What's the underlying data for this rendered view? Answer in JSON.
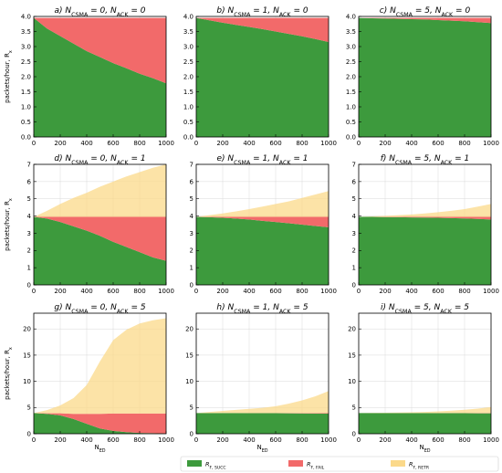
{
  "figure": {
    "ylabel": "packets/hour, R_x",
    "xlabel": "N_ED"
  },
  "legend": [
    {
      "label": "R_{F, SUCC}",
      "color": "#3d9a3d"
    },
    {
      "label": "R_{F, FAIL}",
      "color": "#f26a6a"
    },
    {
      "label": "R_{F, RETR}",
      "color": "#fbd98a"
    }
  ],
  "chart_data": [
    {
      "type": "area",
      "title": "a) N_CSMA = 0, N_ACK = 0",
      "x": [
        0,
        100,
        200,
        300,
        400,
        500,
        600,
        700,
        800,
        900,
        1000
      ],
      "series": [
        {
          "name": "R_{F, SUCC}",
          "values": [
            3.95,
            3.6,
            3.35,
            3.1,
            2.85,
            2.65,
            2.45,
            2.28,
            2.1,
            1.95,
            1.78
          ]
        },
        {
          "name": "R_{F, FAIL}",
          "values": [
            0.0,
            0.35,
            0.6,
            0.85,
            1.1,
            1.3,
            1.5,
            1.67,
            1.85,
            2.0,
            2.17
          ]
        }
      ],
      "xlim": [
        0,
        1000
      ],
      "ylim": [
        0,
        4.0
      ],
      "xticks": [
        "0",
        "200",
        "400",
        "600",
        "800",
        "1000"
      ],
      "yticks": [
        "0.0",
        "0.5",
        "1.0",
        "1.5",
        "2.0",
        "2.5",
        "3.0",
        "3.5",
        "4.0"
      ]
    },
    {
      "type": "area",
      "title": "b) N_CSMA = 1, N_ACK = 0",
      "x": [
        0,
        100,
        200,
        300,
        400,
        500,
        600,
        700,
        800,
        900,
        1000
      ],
      "series": [
        {
          "name": "R_{F, SUCC}",
          "values": [
            3.95,
            3.87,
            3.79,
            3.72,
            3.65,
            3.58,
            3.5,
            3.42,
            3.34,
            3.25,
            3.15
          ]
        },
        {
          "name": "R_{F, FAIL}",
          "values": [
            0.0,
            0.08,
            0.16,
            0.23,
            0.3,
            0.37,
            0.45,
            0.53,
            0.61,
            0.7,
            0.8
          ]
        }
      ],
      "xlim": [
        0,
        1000
      ],
      "ylim": [
        0,
        4.0
      ],
      "xticks": [
        "0",
        "200",
        "400",
        "600",
        "800",
        "1000"
      ],
      "yticks": [
        "0.0",
        "0.5",
        "1.0",
        "1.5",
        "2.0",
        "2.5",
        "3.0",
        "3.5",
        "4.0"
      ]
    },
    {
      "type": "area",
      "title": "c) N_CSMA = 5, N_ACK = 0",
      "x": [
        0,
        100,
        200,
        300,
        400,
        500,
        600,
        700,
        800,
        900,
        1000
      ],
      "series": [
        {
          "name": "R_{F, SUCC}",
          "values": [
            3.95,
            3.94,
            3.93,
            3.92,
            3.91,
            3.9,
            3.88,
            3.86,
            3.84,
            3.81,
            3.78
          ]
        },
        {
          "name": "R_{F, FAIL}",
          "values": [
            0.0,
            0.01,
            0.02,
            0.03,
            0.04,
            0.05,
            0.07,
            0.09,
            0.11,
            0.14,
            0.17
          ]
        }
      ],
      "xlim": [
        0,
        1000
      ],
      "ylim": [
        0,
        4.0
      ],
      "xticks": [
        "0",
        "200",
        "400",
        "600",
        "800",
        "1000"
      ],
      "yticks": [
        "0.0",
        "0.5",
        "1.0",
        "1.5",
        "2.0",
        "2.5",
        "3.0",
        "3.5",
        "4.0"
      ]
    },
    {
      "type": "area",
      "title": "d) N_CSMA = 0, N_ACK = 1",
      "x": [
        0,
        100,
        200,
        300,
        400,
        500,
        600,
        700,
        800,
        900,
        1000
      ],
      "series": [
        {
          "name": "R_{F, SUCC}",
          "values": [
            3.95,
            3.85,
            3.65,
            3.4,
            3.15,
            2.85,
            2.5,
            2.2,
            1.9,
            1.6,
            1.4
          ]
        },
        {
          "name": "R_{F, FAIL}",
          "values": [
            0.0,
            0.1,
            0.3,
            0.55,
            0.8,
            1.1,
            1.45,
            1.75,
            2.05,
            2.35,
            2.55
          ]
        },
        {
          "name": "R_{F, RETR}",
          "values": [
            0.0,
            0.35,
            0.75,
            1.1,
            1.4,
            1.75,
            2.05,
            2.35,
            2.6,
            2.85,
            3.05
          ]
        }
      ],
      "xlim": [
        0,
        1000
      ],
      "ylim": [
        0,
        7.0
      ],
      "xticks": [
        "0",
        "200",
        "400",
        "600",
        "800",
        "1000"
      ],
      "yticks": [
        "0",
        "1",
        "2",
        "3",
        "4",
        "5",
        "6",
        "7"
      ]
    },
    {
      "type": "area",
      "title": "e) N_CSMA = 1, N_ACK = 1",
      "x": [
        0,
        100,
        200,
        300,
        400,
        500,
        600,
        700,
        800,
        900,
        1000
      ],
      "series": [
        {
          "name": "R_{F, SUCC}",
          "values": [
            3.95,
            3.93,
            3.9,
            3.85,
            3.8,
            3.72,
            3.65,
            3.58,
            3.5,
            3.42,
            3.35
          ]
        },
        {
          "name": "R_{F, FAIL}",
          "values": [
            0.0,
            0.02,
            0.05,
            0.1,
            0.15,
            0.23,
            0.3,
            0.37,
            0.45,
            0.53,
            0.6
          ]
        },
        {
          "name": "R_{F, RETR}",
          "values": [
            0.0,
            0.1,
            0.2,
            0.32,
            0.45,
            0.6,
            0.75,
            0.9,
            1.1,
            1.3,
            1.5
          ]
        }
      ],
      "xlim": [
        0,
        1000
      ],
      "ylim": [
        0,
        7.0
      ],
      "xticks": [
        "0",
        "200",
        "400",
        "600",
        "800",
        "1000"
      ],
      "yticks": [
        "0",
        "1",
        "2",
        "3",
        "4",
        "5",
        "6",
        "7"
      ]
    },
    {
      "type": "area",
      "title": "f) N_CSMA = 5, N_ACK = 1",
      "x": [
        0,
        100,
        200,
        300,
        400,
        500,
        600,
        700,
        800,
        900,
        1000
      ],
      "series": [
        {
          "name": "R_{F, SUCC}",
          "values": [
            3.95,
            3.95,
            3.94,
            3.93,
            3.92,
            3.91,
            3.9,
            3.88,
            3.86,
            3.83,
            3.8
          ]
        },
        {
          "name": "R_{F, FAIL}",
          "values": [
            0.0,
            0.0,
            0.01,
            0.02,
            0.03,
            0.04,
            0.05,
            0.07,
            0.09,
            0.12,
            0.15
          ]
        },
        {
          "name": "R_{F, RETR}",
          "values": [
            0.0,
            0.03,
            0.06,
            0.1,
            0.14,
            0.2,
            0.27,
            0.35,
            0.45,
            0.6,
            0.75
          ]
        }
      ],
      "xlim": [
        0,
        1000
      ],
      "ylim": [
        0,
        7.0
      ],
      "xticks": [
        "0",
        "200",
        "400",
        "600",
        "800",
        "1000"
      ],
      "yticks": [
        "0",
        "1",
        "2",
        "3",
        "4",
        "5",
        "6",
        "7"
      ]
    },
    {
      "type": "area",
      "title": "g) N_CSMA = 0, N_ACK = 5",
      "x": [
        0,
        100,
        200,
        300,
        400,
        500,
        600,
        700,
        800,
        900,
        1000
      ],
      "series": [
        {
          "name": "R_{F, SUCC}",
          "values": [
            3.95,
            3.8,
            3.5,
            2.8,
            1.9,
            1.0,
            0.55,
            0.3,
            0.15,
            0.1,
            0.05
          ]
        },
        {
          "name": "R_{F, FAIL}",
          "values": [
            0.0,
            0.1,
            0.4,
            1.0,
            1.9,
            2.8,
            3.3,
            3.55,
            3.7,
            3.75,
            3.8
          ]
        },
        {
          "name": "R_{F, RETR}",
          "values": [
            0.0,
            0.6,
            1.5,
            3.0,
            5.5,
            10.0,
            14.0,
            16.0,
            17.2,
            17.8,
            18.2
          ]
        }
      ],
      "xlim": [
        0,
        1000
      ],
      "ylim": [
        0,
        23.0
      ],
      "xticks": [
        "0",
        "200",
        "400",
        "600",
        "800",
        "1000"
      ],
      "yticks": [
        "0",
        "5",
        "10",
        "15",
        "20"
      ]
    },
    {
      "type": "area",
      "title": "h) N_CSMA = 1, N_ACK = 5",
      "x": [
        0,
        100,
        200,
        300,
        400,
        500,
        600,
        700,
        800,
        900,
        1000
      ],
      "series": [
        {
          "name": "R_{F, SUCC}",
          "values": [
            3.95,
            3.95,
            3.94,
            3.94,
            3.93,
            3.92,
            3.91,
            3.9,
            3.88,
            3.86,
            3.84
          ]
        },
        {
          "name": "R_{F, FAIL}",
          "values": [
            0.0,
            0.0,
            0.01,
            0.01,
            0.02,
            0.03,
            0.04,
            0.05,
            0.07,
            0.09,
            0.11
          ]
        },
        {
          "name": "R_{F, RETR}",
          "values": [
            0.0,
            0.2,
            0.4,
            0.6,
            0.8,
            1.0,
            1.3,
            1.8,
            2.4,
            3.2,
            4.2
          ]
        }
      ],
      "xlim": [
        0,
        1000
      ],
      "ylim": [
        0,
        23.0
      ],
      "xticks": [
        "0",
        "200",
        "400",
        "600",
        "800",
        "1000"
      ],
      "yticks": [
        "0",
        "5",
        "10",
        "15",
        "20"
      ]
    },
    {
      "type": "area",
      "title": "i) N_CSMA = 5, N_ACK = 5",
      "x": [
        0,
        100,
        200,
        300,
        400,
        500,
        600,
        700,
        800,
        900,
        1000
      ],
      "series": [
        {
          "name": "R_{F, SUCC}",
          "values": [
            3.95,
            3.95,
            3.95,
            3.95,
            3.94,
            3.94,
            3.93,
            3.92,
            3.91,
            3.9,
            3.89
          ]
        },
        {
          "name": "R_{F, FAIL}",
          "values": [
            0.0,
            0.0,
            0.0,
            0.0,
            0.01,
            0.01,
            0.02,
            0.03,
            0.04,
            0.05,
            0.06
          ]
        },
        {
          "name": "R_{F, RETR}",
          "values": [
            0.0,
            0.03,
            0.06,
            0.1,
            0.15,
            0.22,
            0.32,
            0.45,
            0.62,
            0.85,
            1.15
          ]
        }
      ],
      "xlim": [
        0,
        1000
      ],
      "ylim": [
        0,
        23.0
      ],
      "xticks": [
        "0",
        "200",
        "400",
        "600",
        "800",
        "1000"
      ],
      "yticks": [
        "0",
        "5",
        "10",
        "15",
        "20"
      ]
    }
  ]
}
